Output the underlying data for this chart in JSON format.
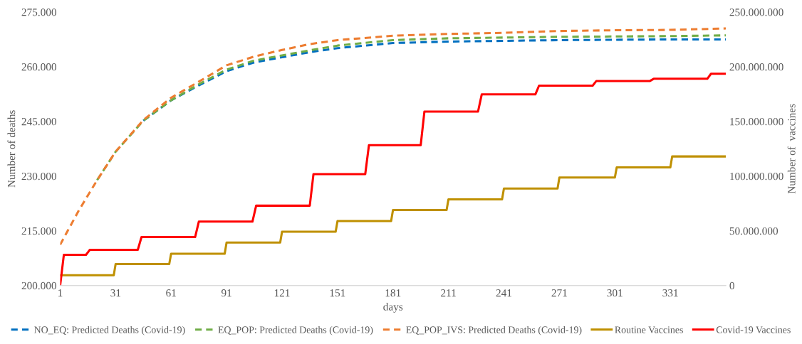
{
  "chart_data": {
    "type": "line",
    "xlabel": "days",
    "ylabel": "Number of deaths",
    "y2label": "Number of  vaccines",
    "xlim": [
      1,
      361
    ],
    "xticks": [
      1,
      31,
      61,
      91,
      121,
      151,
      181,
      211,
      241,
      271,
      301,
      331
    ],
    "ylim": [
      200000,
      275000
    ],
    "yticks": [
      {
        "value": 200000,
        "label": "200.000"
      },
      {
        "value": 215000,
        "label": "215.000"
      },
      {
        "value": 230000,
        "label": "230.000"
      },
      {
        "value": 245000,
        "label": "245.000"
      },
      {
        "value": 260000,
        "label": "260.000"
      },
      {
        "value": 275000,
        "label": "275.000"
      }
    ],
    "y2lim": [
      0,
      250000000
    ],
    "y2ticks": [
      0,
      {
        "value": 50000000,
        "label": "50.000.000"
      },
      {
        "value": 100000000,
        "label": "100.000.000"
      },
      {
        "value": 150000000,
        "label": "150.000.000"
      },
      {
        "value": 200000000,
        "label": "200.000.000"
      },
      {
        "value": 250000000,
        "label": "250.000.000"
      }
    ],
    "grid": false,
    "legend": "bottom",
    "series": [
      {
        "name": "NO_EQ: Predicted Deaths (Covid-19)",
        "color": "#0070c0",
        "line_style": "dashed",
        "x": [
          46,
          61,
          76,
          91,
          106,
          121,
          136,
          151,
          181,
          211,
          241,
          271,
          301,
          331,
          361
        ],
        "values": [
          245200,
          250800,
          254900,
          258800,
          261200,
          262600,
          264000,
          265100,
          266500,
          266900,
          267100,
          267300,
          267400,
          267500,
          267500
        ]
      },
      {
        "name": "EQ_POP: Predicted Deaths (Covid-19)",
        "color": "#70ad47",
        "line_style": "dashed",
        "x": [
          21,
          31,
          46,
          61,
          76,
          91,
          106,
          121,
          136,
          151,
          181,
          211,
          241,
          271,
          301,
          331,
          361
        ],
        "values": [
          228900,
          236700,
          245200,
          250800,
          255200,
          259200,
          261700,
          263100,
          264500,
          265800,
          267300,
          267800,
          268000,
          268200,
          268300,
          268400,
          268600
        ]
      },
      {
        "name": "EQ_POP_IVS: Predicted Deaths (Covid-19)",
        "color": "#ed7d31",
        "line_style": "dashed",
        "x": [
          1,
          11,
          21,
          31,
          46,
          61,
          76,
          91,
          106,
          121,
          136,
          151,
          181,
          211,
          241,
          271,
          301,
          331,
          361
        ],
        "values": [
          211200,
          220500,
          228900,
          236700,
          245400,
          251500,
          255900,
          260400,
          262800,
          264600,
          266200,
          267300,
          268500,
          269000,
          269300,
          269800,
          270000,
          270100,
          270500
        ]
      },
      {
        "name": "Routine Vaccines",
        "color": "#bf9000",
        "line_style": "solid",
        "axis": "y2",
        "x": [
          1,
          30,
          31,
          60,
          61,
          90,
          91,
          120,
          121,
          150,
          151,
          180,
          181,
          210,
          211,
          240,
          241,
          270,
          271,
          301,
          302,
          331,
          332,
          361
        ],
        "values": [
          9400000,
          9400000,
          19600000,
          19600000,
          29000000,
          29000000,
          39300000,
          39300000,
          49200000,
          49200000,
          58900000,
          58900000,
          69000000,
          69000000,
          78700000,
          78700000,
          88700000,
          88700000,
          98700000,
          98700000,
          108000000,
          108000000,
          118000000,
          118000000
        ]
      },
      {
        "name": "Covid-19 Vaccines",
        "color": "#ff0000",
        "line_style": "solid",
        "axis": "y2",
        "x": [
          1,
          3,
          15,
          17,
          43,
          45,
          74,
          76,
          105,
          107,
          136,
          138,
          166,
          168,
          196,
          198,
          227,
          229,
          258,
          260,
          289,
          291,
          320,
          322,
          351,
          353,
          361
        ],
        "values": [
          0,
          28100000,
          28100000,
          32600000,
          32600000,
          44300000,
          44300000,
          58400000,
          58400000,
          73000000,
          73000000,
          101800000,
          101800000,
          128300000,
          128300000,
          159000000,
          159000000,
          174700000,
          174700000,
          182700000,
          182700000,
          187000000,
          187000000,
          189000000,
          189000000,
          193600000,
          193600000
        ]
      }
    ]
  }
}
